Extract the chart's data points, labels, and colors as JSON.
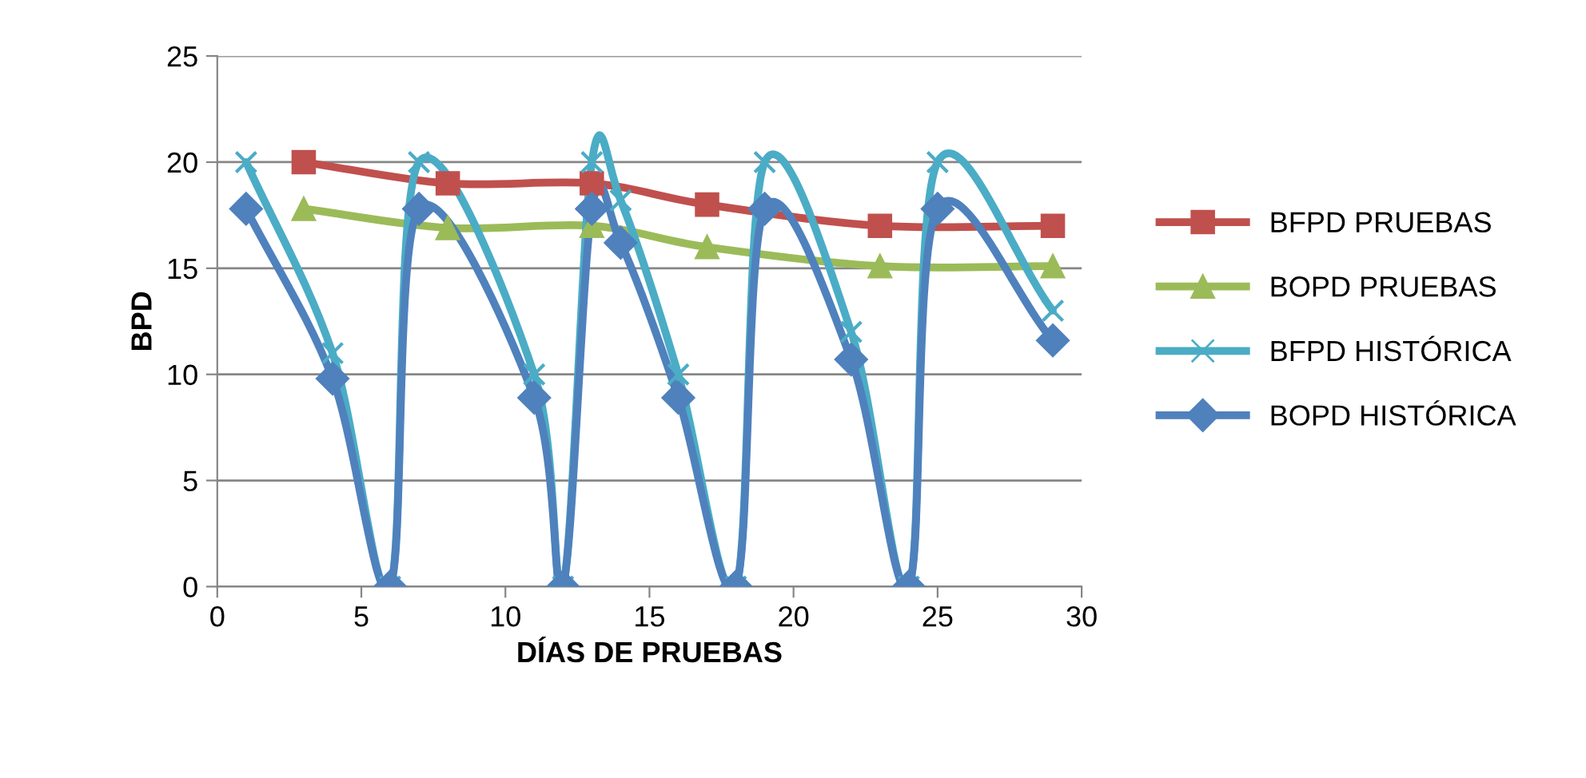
{
  "chart_data": {
    "type": "line",
    "xlabel": "DÍAS DE PRUEBAS",
    "ylabel": "BPD",
    "xlim": [
      0,
      30
    ],
    "xticks": [
      0,
      5,
      10,
      15,
      20,
      25,
      30
    ],
    "ylim": [
      0,
      25
    ],
    "yticks": [
      0,
      5,
      10,
      15,
      20,
      25
    ],
    "grid": "y",
    "legend": "right",
    "line_style": "solid",
    "series": [
      {
        "name": "BFPD PRUEBAS",
        "color": "#c0504d",
        "marker": "square",
        "x": [
          3,
          8,
          13,
          17,
          23,
          29
        ],
        "values": [
          20,
          19,
          19,
          18,
          17,
          17
        ]
      },
      {
        "name": "BOPD PRUEBAS",
        "color": "#9bbb59",
        "marker": "triangle",
        "x": [
          3,
          8,
          13,
          17,
          23,
          29
        ],
        "values": [
          17.8,
          16.9,
          17,
          16,
          15.1,
          15.1
        ]
      },
      {
        "name": "BFPD HISTÓRICA",
        "color": "#4bacc6",
        "marker": "cross",
        "x": [
          1,
          4,
          6,
          7,
          11,
          12,
          13,
          14,
          16,
          18,
          19,
          22,
          24,
          25,
          29
        ],
        "values": [
          20,
          11,
          0,
          20,
          10,
          0,
          20,
          18.2,
          10,
          0,
          20,
          12,
          0,
          20,
          13
        ]
      },
      {
        "name": "BOPD HISTÓRICA",
        "color": "#4f81bd",
        "marker": "diamond",
        "x": [
          1,
          4,
          6,
          7,
          11,
          12,
          13,
          14,
          16,
          18,
          19,
          22,
          24,
          25,
          29
        ],
        "values": [
          17.8,
          9.8,
          0,
          17.8,
          8.9,
          0,
          17.8,
          16.2,
          8.9,
          0,
          17.8,
          10.7,
          0,
          17.8,
          11.6
        ]
      }
    ]
  }
}
